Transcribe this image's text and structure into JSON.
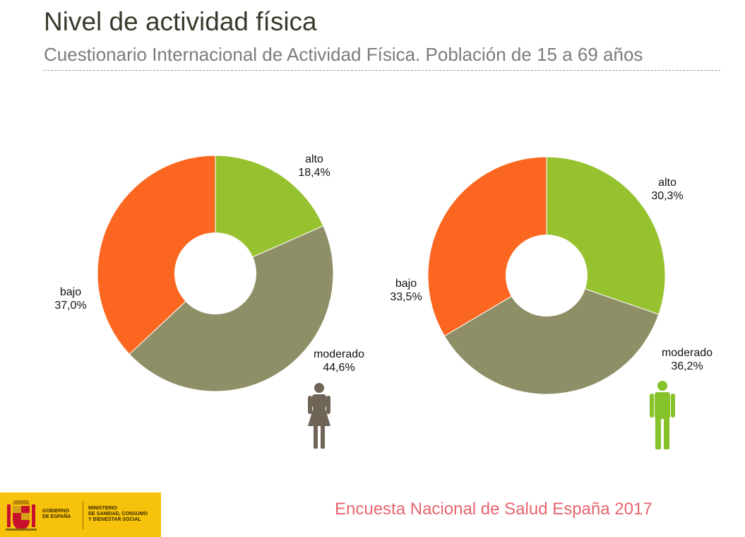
{
  "header": {
    "title": "Nivel de actividad física",
    "subtitle": "Cuestionario Internacional de Actividad Física. Población de 15 a 69 años"
  },
  "colors": {
    "alto": "#97c22f",
    "moderado": "#8f8f67",
    "bajo": "#fb6720",
    "female_icon": "#6f6556",
    "male_icon": "#86c229"
  },
  "chart_data": [
    {
      "type": "pie",
      "icon": "female-figure-icon",
      "slices": [
        {
          "name": "alto",
          "value": 18.4,
          "label": "18,4%"
        },
        {
          "name": "moderado",
          "value": 44.6,
          "label": "44,6%"
        },
        {
          "name": "bajo",
          "value": 37.0,
          "label": "37,0%"
        }
      ]
    },
    {
      "type": "pie",
      "icon": "male-figure-icon",
      "slices": [
        {
          "name": "alto",
          "value": 30.3,
          "label": "30,3%"
        },
        {
          "name": "moderado",
          "value": 36.2,
          "label": "36,2%"
        },
        {
          "name": "bajo",
          "value": 33.5,
          "label": "33,5%"
        }
      ]
    }
  ],
  "logo": {
    "line1": "GOBIERNO",
    "line2": "DE ESPAÑA",
    "line3": "MINISTERIO",
    "line4": "DE SANIDAD, CONSUMO",
    "line5": "Y BIENESTAR SOCIAL"
  },
  "footer": {
    "source": "Encuesta Nacional de Salud España 2017"
  }
}
